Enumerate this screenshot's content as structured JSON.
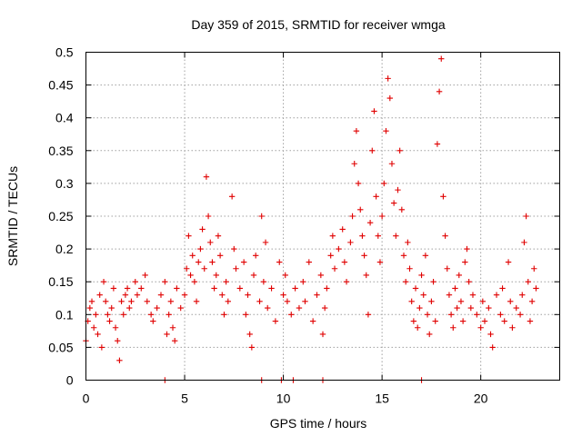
{
  "chart_data": {
    "type": "scatter",
    "title": "Day 359 of 2015, SRMTID for receiver wmga",
    "xlabel": "GPS time / hours",
    "ylabel": "SRMTID / TECUs",
    "xlim": [
      0,
      24
    ],
    "ylim": [
      0,
      0.5
    ],
    "xticks": [
      0,
      5,
      10,
      15,
      20
    ],
    "xtick_labels": [
      "0",
      "5",
      "10",
      "15",
      "20"
    ],
    "yticks": [
      0,
      0.05,
      0.1,
      0.15,
      0.2,
      0.25,
      0.3,
      0.35,
      0.4,
      0.45,
      0.5
    ],
    "ytick_labels": [
      "0",
      "0.05",
      "0.1",
      "0.15",
      "0.2",
      "0.25",
      "0.3",
      "0.35",
      "0.4",
      "0.45",
      "0.5"
    ],
    "grid": true,
    "marker": "plus",
    "color": "#e00000",
    "series": [
      {
        "name": "SRMTID",
        "points": [
          [
            0.0,
            0.06
          ],
          [
            0.1,
            0.09
          ],
          [
            0.2,
            0.11
          ],
          [
            0.3,
            0.12
          ],
          [
            0.4,
            0.08
          ],
          [
            0.5,
            0.1
          ],
          [
            0.6,
            0.07
          ],
          [
            0.7,
            0.13
          ],
          [
            0.8,
            0.05
          ],
          [
            0.9,
            0.15
          ],
          [
            1.0,
            0.12
          ],
          [
            1.1,
            0.1
          ],
          [
            1.2,
            0.09
          ],
          [
            1.3,
            0.11
          ],
          [
            1.4,
            0.14
          ],
          [
            1.5,
            0.08
          ],
          [
            1.6,
            0.06
          ],
          [
            1.7,
            0.03
          ],
          [
            1.8,
            0.12
          ],
          [
            1.9,
            0.1
          ],
          [
            2.0,
            0.13
          ],
          [
            2.1,
            0.14
          ],
          [
            2.2,
            0.11
          ],
          [
            2.3,
            0.12
          ],
          [
            2.5,
            0.15
          ],
          [
            2.6,
            0.13
          ],
          [
            2.8,
            0.14
          ],
          [
            3.0,
            0.16
          ],
          [
            3.1,
            0.12
          ],
          [
            3.3,
            0.1
          ],
          [
            3.4,
            0.09
          ],
          [
            3.6,
            0.11
          ],
          [
            3.8,
            0.13
          ],
          [
            4.0,
            0.15
          ],
          [
            4.1,
            0.07
          ],
          [
            4.2,
            0.1
          ],
          [
            4.3,
            0.12
          ],
          [
            4.4,
            0.08
          ],
          [
            4.5,
            0.06
          ],
          [
            4.6,
            0.14
          ],
          [
            4.8,
            0.11
          ],
          [
            5.0,
            0.13
          ],
          [
            5.1,
            0.17
          ],
          [
            5.2,
            0.22
          ],
          [
            5.3,
            0.16
          ],
          [
            5.4,
            0.19
          ],
          [
            5.5,
            0.15
          ],
          [
            5.6,
            0.12
          ],
          [
            5.7,
            0.18
          ],
          [
            5.8,
            0.2
          ],
          [
            5.9,
            0.23
          ],
          [
            6.0,
            0.17
          ],
          [
            6.1,
            0.31
          ],
          [
            6.2,
            0.25
          ],
          [
            6.3,
            0.21
          ],
          [
            6.4,
            0.18
          ],
          [
            6.5,
            0.14
          ],
          [
            6.6,
            0.16
          ],
          [
            6.7,
            0.22
          ],
          [
            6.8,
            0.19
          ],
          [
            6.9,
            0.13
          ],
          [
            7.0,
            0.1
          ],
          [
            7.1,
            0.15
          ],
          [
            7.2,
            0.12
          ],
          [
            7.4,
            0.28
          ],
          [
            7.5,
            0.2
          ],
          [
            7.6,
            0.17
          ],
          [
            7.8,
            0.14
          ],
          [
            8.0,
            0.18
          ],
          [
            8.1,
            0.1
          ],
          [
            8.2,
            0.13
          ],
          [
            8.3,
            0.07
          ],
          [
            8.4,
            0.05
          ],
          [
            8.5,
            0.16
          ],
          [
            8.6,
            0.19
          ],
          [
            8.8,
            0.12
          ],
          [
            8.9,
            0.25
          ],
          [
            9.0,
            0.15
          ],
          [
            9.1,
            0.21
          ],
          [
            9.2,
            0.11
          ],
          [
            9.4,
            0.14
          ],
          [
            9.6,
            0.09
          ],
          [
            9.8,
            0.18
          ],
          [
            10.0,
            0.13
          ],
          [
            10.1,
            0.16
          ],
          [
            10.2,
            0.12
          ],
          [
            10.4,
            0.1
          ],
          [
            10.6,
            0.14
          ],
          [
            10.8,
            0.11
          ],
          [
            11.0,
            0.15
          ],
          [
            11.1,
            0.12
          ],
          [
            11.3,
            0.18
          ],
          [
            11.5,
            0.09
          ],
          [
            11.7,
            0.13
          ],
          [
            11.9,
            0.16
          ],
          [
            12.0,
            0.07
          ],
          [
            12.1,
            0.11
          ],
          [
            12.2,
            0.14
          ],
          [
            12.4,
            0.19
          ],
          [
            12.5,
            0.22
          ],
          [
            12.6,
            0.17
          ],
          [
            12.8,
            0.2
          ],
          [
            13.0,
            0.23
          ],
          [
            13.1,
            0.18
          ],
          [
            13.2,
            0.15
          ],
          [
            13.4,
            0.21
          ],
          [
            13.5,
            0.25
          ],
          [
            13.6,
            0.33
          ],
          [
            13.7,
            0.38
          ],
          [
            13.8,
            0.3
          ],
          [
            13.9,
            0.26
          ],
          [
            14.0,
            0.22
          ],
          [
            14.1,
            0.19
          ],
          [
            14.2,
            0.16
          ],
          [
            14.3,
            0.1
          ],
          [
            14.4,
            0.24
          ],
          [
            14.5,
            0.35
          ],
          [
            14.6,
            0.41
          ],
          [
            14.7,
            0.28
          ],
          [
            14.8,
            0.22
          ],
          [
            14.9,
            0.18
          ],
          [
            15.0,
            0.25
          ],
          [
            15.1,
            0.3
          ],
          [
            15.2,
            0.38
          ],
          [
            15.3,
            0.46
          ],
          [
            15.4,
            0.43
          ],
          [
            15.5,
            0.33
          ],
          [
            15.6,
            0.27
          ],
          [
            15.7,
            0.22
          ],
          [
            15.8,
            0.29
          ],
          [
            15.9,
            0.35
          ],
          [
            16.0,
            0.26
          ],
          [
            16.1,
            0.19
          ],
          [
            16.2,
            0.15
          ],
          [
            16.3,
            0.21
          ],
          [
            16.4,
            0.17
          ],
          [
            16.5,
            0.12
          ],
          [
            16.6,
            0.09
          ],
          [
            16.7,
            0.14
          ],
          [
            16.8,
            0.08
          ],
          [
            16.9,
            0.11
          ],
          [
            17.0,
            0.16
          ],
          [
            17.1,
            0.13
          ],
          [
            17.2,
            0.19
          ],
          [
            17.3,
            0.1
          ],
          [
            17.4,
            0.07
          ],
          [
            17.5,
            0.12
          ],
          [
            17.6,
            0.15
          ],
          [
            17.7,
            0.09
          ],
          [
            17.8,
            0.36
          ],
          [
            17.9,
            0.44
          ],
          [
            18.0,
            0.49
          ],
          [
            18.1,
            0.28
          ],
          [
            18.2,
            0.22
          ],
          [
            18.3,
            0.17
          ],
          [
            18.4,
            0.13
          ],
          [
            18.5,
            0.1
          ],
          [
            18.6,
            0.08
          ],
          [
            18.7,
            0.14
          ],
          [
            18.8,
            0.11
          ],
          [
            18.9,
            0.16
          ],
          [
            19.0,
            0.12
          ],
          [
            19.1,
            0.09
          ],
          [
            19.2,
            0.18
          ],
          [
            19.3,
            0.2
          ],
          [
            19.4,
            0.15
          ],
          [
            19.5,
            0.11
          ],
          [
            19.6,
            0.13
          ],
          [
            19.8,
            0.1
          ],
          [
            20.0,
            0.08
          ],
          [
            20.1,
            0.12
          ],
          [
            20.2,
            0.09
          ],
          [
            20.4,
            0.11
          ],
          [
            20.5,
            0.07
          ],
          [
            20.6,
            0.05
          ],
          [
            20.8,
            0.13
          ],
          [
            21.0,
            0.1
          ],
          [
            21.1,
            0.14
          ],
          [
            21.2,
            0.09
          ],
          [
            21.4,
            0.18
          ],
          [
            21.5,
            0.12
          ],
          [
            21.6,
            0.08
          ],
          [
            21.8,
            0.11
          ],
          [
            22.0,
            0.1
          ],
          [
            22.1,
            0.13
          ],
          [
            22.2,
            0.21
          ],
          [
            22.3,
            0.25
          ],
          [
            22.4,
            0.15
          ],
          [
            22.5,
            0.09
          ],
          [
            22.6,
            0.12
          ],
          [
            22.7,
            0.17
          ],
          [
            22.8,
            0.14
          ],
          [
            4.0,
            0.0
          ],
          [
            8.9,
            0.0
          ],
          [
            9.9,
            0.0
          ],
          [
            10.5,
            0.0
          ],
          [
            12.0,
            0.0
          ],
          [
            17.0,
            0.0
          ]
        ]
      }
    ]
  }
}
